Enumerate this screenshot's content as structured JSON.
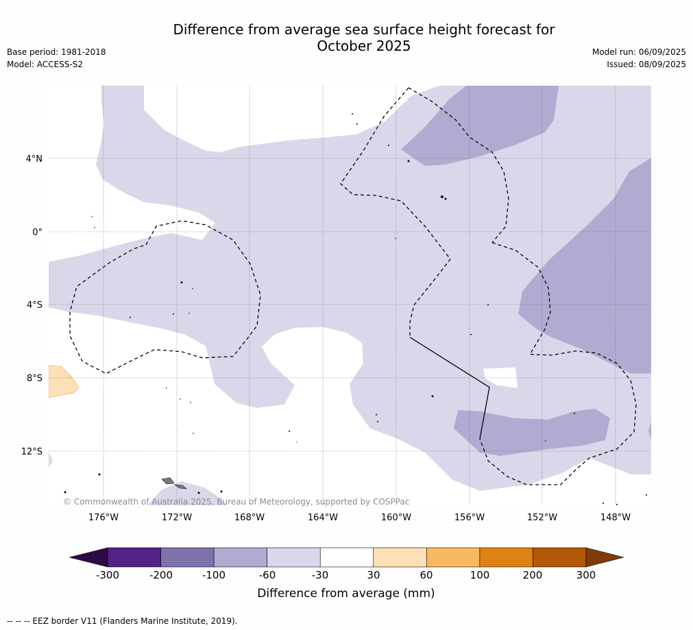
{
  "title_line1": "Difference from average sea surface height forecast for",
  "title_line2": "October 2025",
  "meta": {
    "base_period": "Base period: 1981-2018",
    "model": "Model: ACCESS-S2",
    "model_run": "Model run: 06/09/2025",
    "issued": "Issued: 08/09/2025"
  },
  "map": {
    "lat_labels": [
      "4°N",
      "0°",
      "4°S",
      "8°S",
      "12°S"
    ],
    "lon_labels": [
      "176°W",
      "172°W",
      "168°W",
      "164°W",
      "160°W",
      "156°W",
      "152°W",
      "148°W"
    ],
    "copyright": "© Commonwealth of Australia 2025, Bureau of Meteorology, supported by COSPPac"
  },
  "colorbar": {
    "title": "Difference from average (mm)",
    "tick_labels": [
      "-300",
      "-200",
      "-100",
      "-60",
      "-30",
      "30",
      "60",
      "100",
      "200",
      "300"
    ],
    "colors": {
      "below_min": "#2d0b45",
      "bins": [
        "#542286",
        "#7f72ac",
        "#b1abd2",
        "#d8d8ea",
        "#ffffff",
        "#fee0b6",
        "#fbb863",
        "#e08213",
        "#b35806"
      ],
      "above_max": "#7f3b08"
    }
  },
  "footnote": "-- -- -- EEZ border V11 (Flanders Marine Institute, 2019)."
}
